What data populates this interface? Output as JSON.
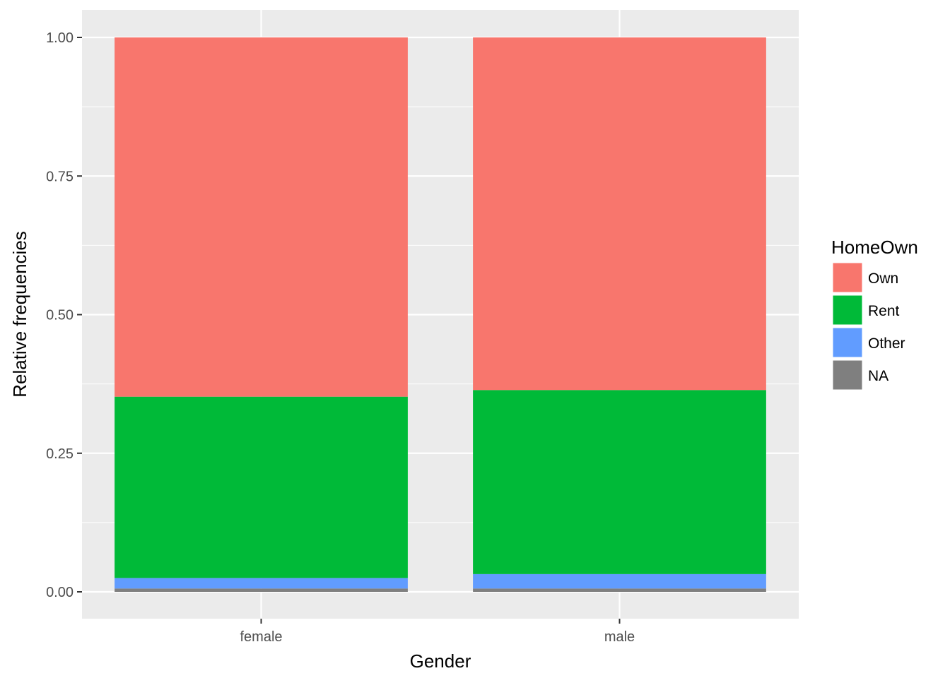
{
  "chart_data": {
    "type": "bar",
    "stacked": true,
    "categories": [
      "female",
      "male"
    ],
    "series": [
      {
        "name": "NA",
        "color": "#7f7f7f",
        "values": [
          0.006,
          0.006
        ]
      },
      {
        "name": "Other",
        "color": "#619cff",
        "values": [
          0.019,
          0.026
        ]
      },
      {
        "name": "Rent",
        "color": "#00ba38",
        "values": [
          0.327,
          0.332
        ]
      },
      {
        "name": "Own",
        "color": "#f8766d",
        "values": [
          0.648,
          0.636
        ]
      }
    ],
    "xlabel": "Gender",
    "ylabel": "Relative frequencies",
    "ylim": [
      0,
      1.0
    ],
    "yticks": [
      0,
      0.25,
      0.5,
      0.75,
      1.0
    ],
    "ytick_labels": [
      "0.00",
      "0.25",
      "0.50",
      "0.75",
      "1.00"
    ],
    "grid": true,
    "panel_background": "#ebebeb",
    "legend": {
      "title": "HomeOwn",
      "position": "right",
      "items": [
        {
          "label": "Own",
          "color": "#f8766d"
        },
        {
          "label": "Rent",
          "color": "#00ba38"
        },
        {
          "label": "Other",
          "color": "#619cff"
        },
        {
          "label": "NA",
          "color": "#7f7f7f"
        }
      ]
    }
  }
}
